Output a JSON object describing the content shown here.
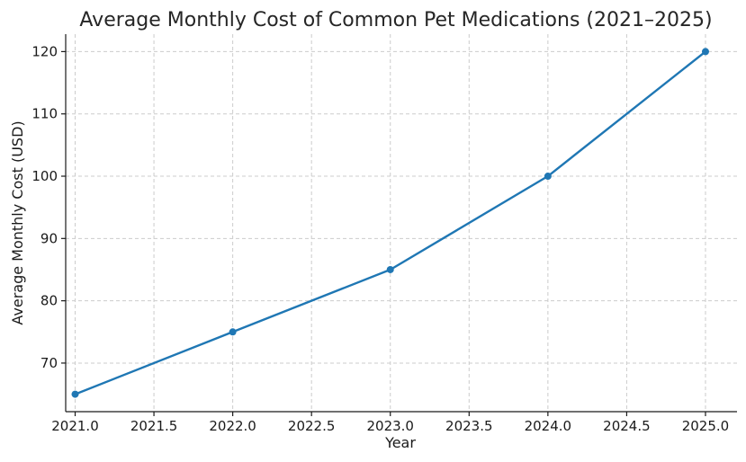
{
  "chart_data": {
    "type": "line",
    "title": "Average Monthly Cost of Common Pet Medications (2021–2025)",
    "xlabel": "Year",
    "ylabel": "Average Monthly Cost (USD)",
    "x": [
      2021,
      2022,
      2023,
      2024,
      2025
    ],
    "series": [
      {
        "values": [
          65,
          75,
          85,
          100,
          120
        ],
        "color": "#1f77b4"
      }
    ],
    "xlim": [
      2020.94,
      2025.2
    ],
    "ylim": [
      62.2,
      122.8
    ],
    "xticks": [
      2021.0,
      2021.5,
      2022.0,
      2022.5,
      2023.0,
      2023.5,
      2024.0,
      2024.5,
      2025.0
    ],
    "xtick_labels": [
      "2021.0",
      "2021.5",
      "2022.0",
      "2022.5",
      "2023.0",
      "2023.5",
      "2024.0",
      "2024.5",
      "2025.0"
    ],
    "yticks": [
      70,
      80,
      90,
      100,
      110,
      120
    ],
    "ytick_labels": [
      "70",
      "80",
      "90",
      "100",
      "110",
      "120"
    ],
    "grid": true,
    "legend": "none"
  }
}
